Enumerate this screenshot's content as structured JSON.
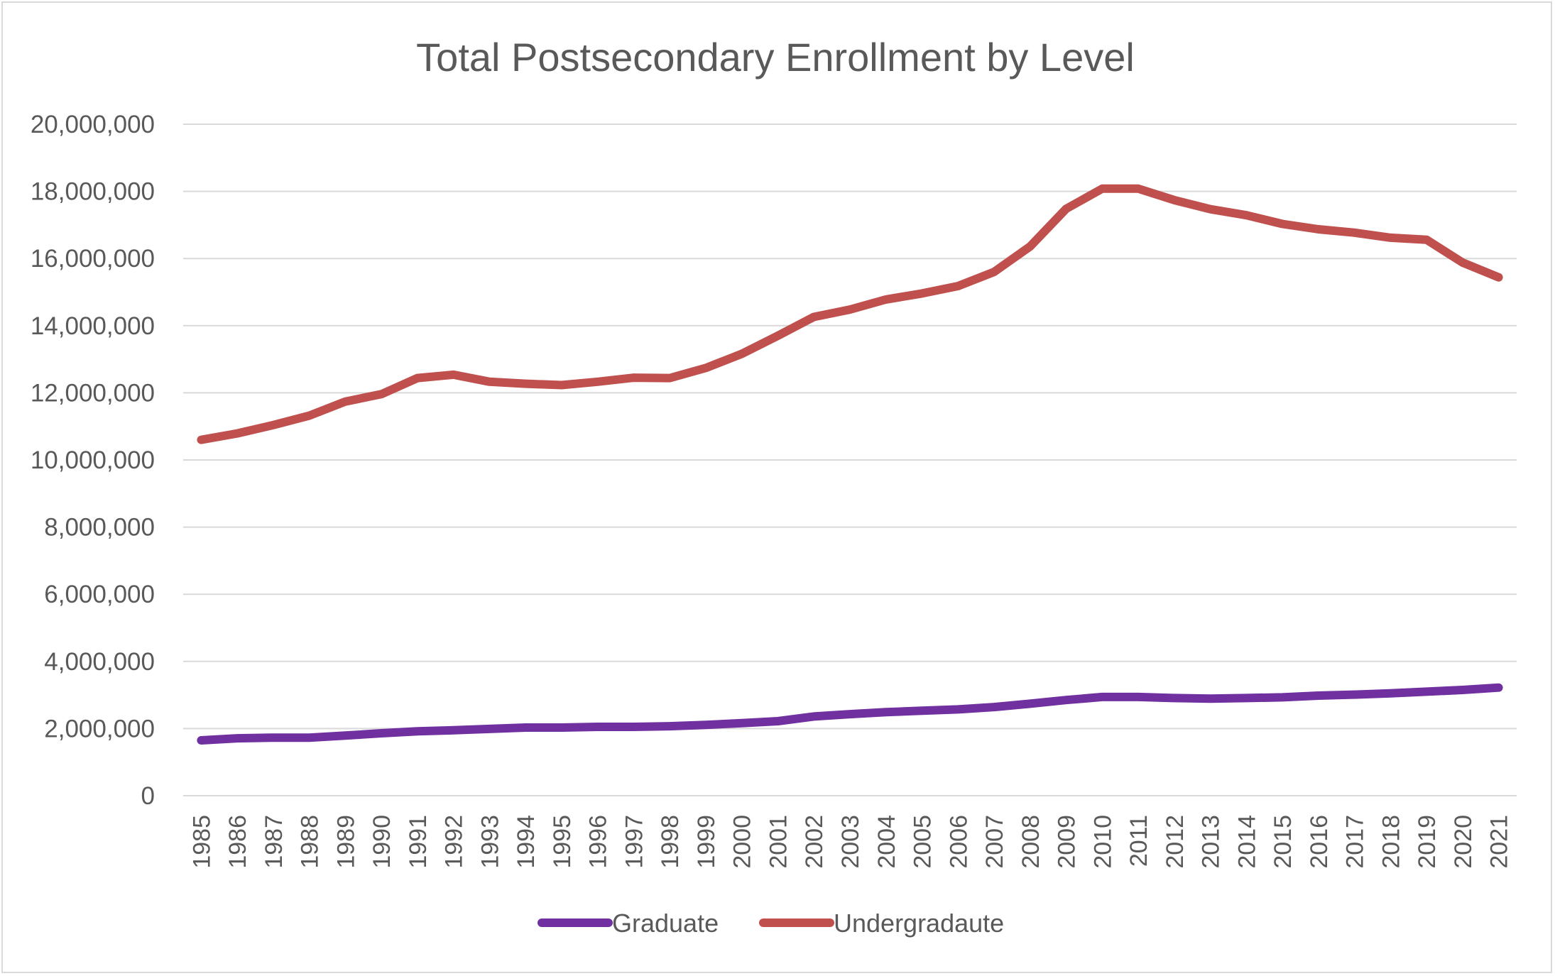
{
  "chart_data": {
    "type": "line",
    "title": "Total Postsecondary Enrollment by Level",
    "xlabel": "",
    "ylabel": "",
    "ylim": [
      0,
      20000000
    ],
    "yticks": [
      0,
      2000000,
      4000000,
      6000000,
      8000000,
      10000000,
      12000000,
      14000000,
      16000000,
      18000000,
      20000000
    ],
    "ytick_labels": [
      "0",
      "2,000,000",
      "4,000,000",
      "6,000,000",
      "8,000,000",
      "10,000,000",
      "12,000,000",
      "14,000,000",
      "16,000,000",
      "18,000,000",
      "20,000,000"
    ],
    "categories": [
      "1985",
      "1986",
      "1987",
      "1988",
      "1989",
      "1990",
      "1991",
      "1992",
      "1993",
      "1994",
      "1995",
      "1996",
      "1997",
      "1998",
      "1999",
      "2000",
      "2001",
      "2002",
      "2003",
      "2004",
      "2005",
      "2006",
      "2007",
      "2008",
      "2009",
      "2010",
      "2011",
      "2012",
      "2013",
      "2014",
      "2015",
      "2016",
      "2017",
      "2018",
      "2019",
      "2020",
      "2021"
    ],
    "grid": true,
    "legend_position": "bottom",
    "series": [
      {
        "name": "Graduate",
        "color": "#7030a0",
        "values": [
          1650000,
          1710000,
          1730000,
          1730000,
          1790000,
          1860000,
          1920000,
          1950000,
          1990000,
          2030000,
          2030000,
          2050000,
          2050000,
          2070000,
          2110000,
          2160000,
          2220000,
          2360000,
          2430000,
          2490000,
          2530000,
          2570000,
          2640000,
          2740000,
          2850000,
          2940000,
          2940000,
          2910000,
          2890000,
          2910000,
          2930000,
          2980000,
          3010000,
          3050000,
          3100000,
          3150000,
          3220000
        ]
      },
      {
        "name": "Undergradaute",
        "color": "#c0504d",
        "values": [
          10600000,
          10790000,
          11040000,
          11320000,
          11740000,
          11960000,
          12440000,
          12540000,
          12330000,
          12270000,
          12230000,
          12330000,
          12450000,
          12440000,
          12740000,
          13160000,
          13700000,
          14260000,
          14480000,
          14780000,
          14960000,
          15180000,
          15600000,
          16360000,
          17480000,
          18080000,
          18080000,
          17740000,
          17470000,
          17290000,
          17030000,
          16870000,
          16770000,
          16620000,
          16560000,
          15880000,
          15440000
        ]
      }
    ]
  }
}
